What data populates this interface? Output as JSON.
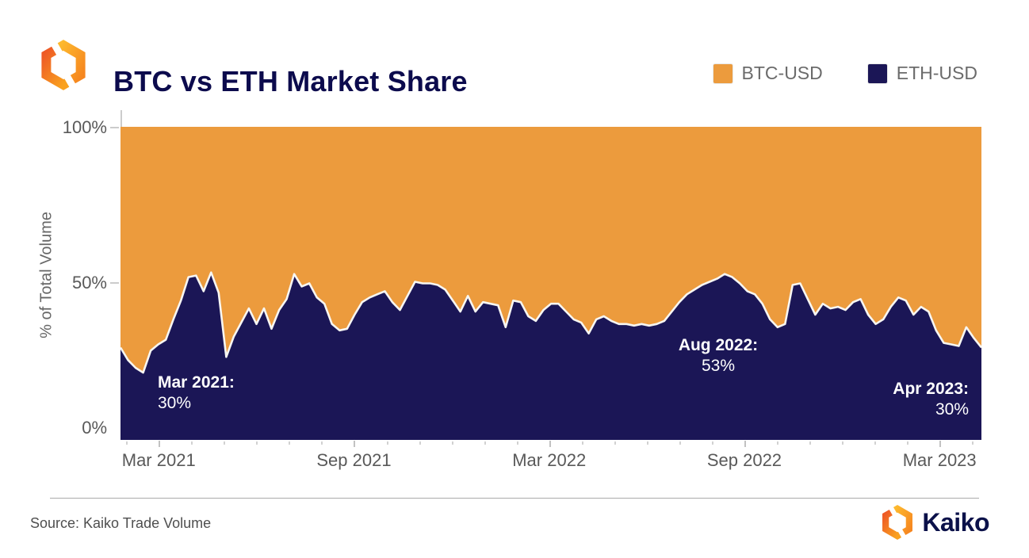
{
  "header": {
    "logo": "kaiko-logo-mark",
    "title": "BTC vs ETH Market Share",
    "legend": [
      {
        "label": "BTC-USD",
        "color": "#EC9B3D"
      },
      {
        "label": "ETH-USD",
        "color": "#1B1656"
      }
    ]
  },
  "chart_data": {
    "type": "area",
    "stacked": true,
    "title": "BTC vs ETH Market Share",
    "ylabel": "% of Total Volume",
    "ylim": [
      0,
      100
    ],
    "y_ticks": [
      0,
      50,
      100
    ],
    "y_tick_labels": [
      "100%",
      "50%",
      "0%"
    ],
    "x_tick_labels": [
      "Mar 2021",
      "Sep 2021",
      "Mar 2022",
      "Sep 2022",
      "Mar 2023"
    ],
    "x_start": "Feb 2021",
    "x_end": "Apr 2023",
    "x_interval": "weekly",
    "grid": false,
    "legend_position": "top-right",
    "boundary_line_color": "#F7F6F2",
    "series": [
      {
        "name": "ETH-USD",
        "color": "#1B1656",
        "unit": "% of total volume",
        "values": [
          29.5,
          25.5,
          23,
          21.5,
          28.5,
          30.5,
          32,
          38.5,
          44.5,
          52,
          52.5,
          47.5,
          53.5,
          47,
          26.5,
          33,
          37.5,
          42,
          37,
          42,
          35.5,
          41.5,
          45,
          53,
          49,
          50,
          45.5,
          43.5,
          37,
          35,
          35.5,
          40,
          44,
          45.5,
          46.5,
          47.5,
          44,
          41.5,
          46,
          50.5,
          50,
          50,
          49.5,
          48,
          44.5,
          41,
          46,
          41,
          44,
          43.5,
          43,
          36,
          44.5,
          44,
          39.5,
          38,
          41.5,
          43.5,
          43.5,
          41,
          38.5,
          37.5,
          34,
          38.5,
          39.5,
          38,
          37,
          37,
          36.5,
          37,
          36.5,
          37,
          38,
          41,
          44,
          46.5,
          48,
          49.5,
          50.5,
          51.5,
          53,
          52,
          50,
          47.5,
          46.5,
          43.5,
          38.5,
          36,
          37,
          49.5,
          50,
          45,
          40,
          43.5,
          42,
          42.5,
          41.5,
          44,
          45,
          40,
          37,
          38.5,
          42.5,
          45.5,
          44.5,
          40,
          42.5,
          41,
          35,
          31,
          30.5,
          30,
          36,
          32.5,
          29.5
        ]
      },
      {
        "name": "BTC-USD",
        "color": "#EC9B3D",
        "unit": "% of total volume",
        "values": [
          70.5,
          74.5,
          77,
          78.5,
          71.5,
          69.5,
          68,
          61.5,
          55.5,
          48,
          47.5,
          52.5,
          46.5,
          53,
          73.5,
          67,
          62.5,
          58,
          63,
          58,
          64.5,
          58.5,
          55,
          47,
          51,
          50,
          54.5,
          56.5,
          63,
          65,
          64.5,
          60,
          56,
          54.5,
          53.5,
          52.5,
          56,
          58.5,
          54,
          49.5,
          50,
          50,
          50.5,
          52,
          55.5,
          59,
          54,
          59,
          56,
          56.5,
          57,
          64,
          55.5,
          56,
          60.5,
          62,
          58.5,
          56.5,
          56.5,
          59,
          61.5,
          62.5,
          66,
          61.5,
          60.5,
          62,
          63,
          63,
          63.5,
          63,
          63.5,
          63,
          62,
          59,
          56,
          53.5,
          52,
          50.5,
          49.5,
          48.5,
          47,
          48,
          50,
          52.5,
          53.5,
          56.5,
          61.5,
          64,
          63,
          50.5,
          50,
          55,
          60,
          56.5,
          58,
          57.5,
          58.5,
          56,
          55,
          60,
          63,
          61.5,
          57.5,
          54.5,
          55.5,
          60,
          57.5,
          59,
          65,
          69,
          69.5,
          70,
          64,
          67.5,
          70.5
        ]
      }
    ],
    "annotations": [
      {
        "text": "Mar 2021:",
        "value": "30%",
        "color": "#FFFFFF"
      },
      {
        "text": "Aug 2022:",
        "value": "53%",
        "color": "#FFFFFF"
      },
      {
        "text": "Apr 2023:",
        "value": "30%",
        "color": "#FFFFFF"
      }
    ]
  },
  "footer": {
    "source": "Source: Kaiko Trade Volume",
    "brand_name": "Kaiko"
  },
  "colors": {
    "title": "#0C0B4D",
    "axis_text": "#595959",
    "legend_text": "#6B6B6B",
    "tick": "#CCCCCC",
    "background": "#FFFFFF"
  }
}
